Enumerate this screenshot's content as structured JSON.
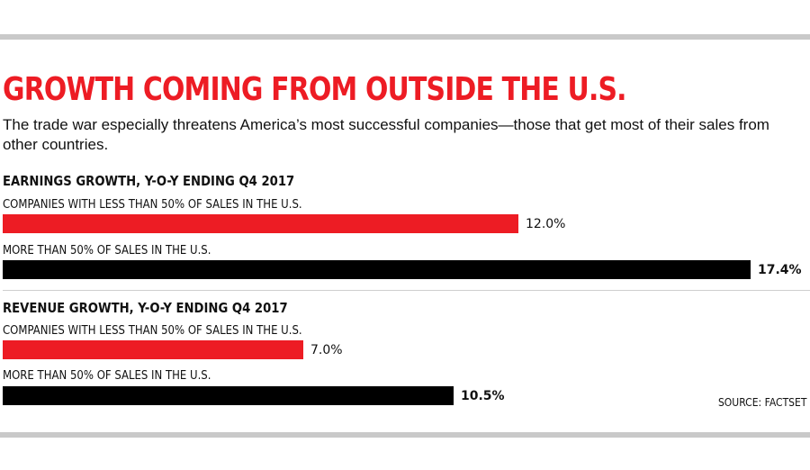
{
  "chart_data": {
    "type": "bar",
    "orientation": "horizontal",
    "title": "GROWTH COMING FROM OUTSIDE THE U.S.",
    "subtitle": "The trade war especially threatens America’s most successful companies—those that get most of their sales from other countries.",
    "source": "SOURCE: FACTSET",
    "max_value": 17.4,
    "colors": {
      "less_than_50": "#ed1c24",
      "more_than_50": "#000000",
      "accent": "#ed1c24",
      "rule": "#c9c9c9"
    },
    "panels": [
      {
        "title": "EARNINGS GROWTH, Y-O-Y ENDING Q4 2017",
        "bars": [
          {
            "label": "COMPANIES WITH LESS THAN 50% OF SALES IN THE U.S.",
            "value": 12.0,
            "value_label": "12.0%",
            "color": "#ed1c24"
          },
          {
            "label": "MORE THAN 50% OF SALES IN THE U.S.",
            "value": 17.4,
            "value_label": "17.4%",
            "color": "#000000"
          }
        ]
      },
      {
        "title": "REVENUE GROWTH, Y-O-Y ENDING Q4 2017",
        "bars": [
          {
            "label": "COMPANIES WITH LESS THAN 50% OF SALES IN THE U.S.",
            "value": 7.0,
            "value_label": "7.0%",
            "color": "#ed1c24"
          },
          {
            "label": "MORE THAN 50% OF SALES IN THE U.S.",
            "value": 10.5,
            "value_label": "10.5%",
            "color": "#000000"
          }
        ]
      }
    ]
  }
}
